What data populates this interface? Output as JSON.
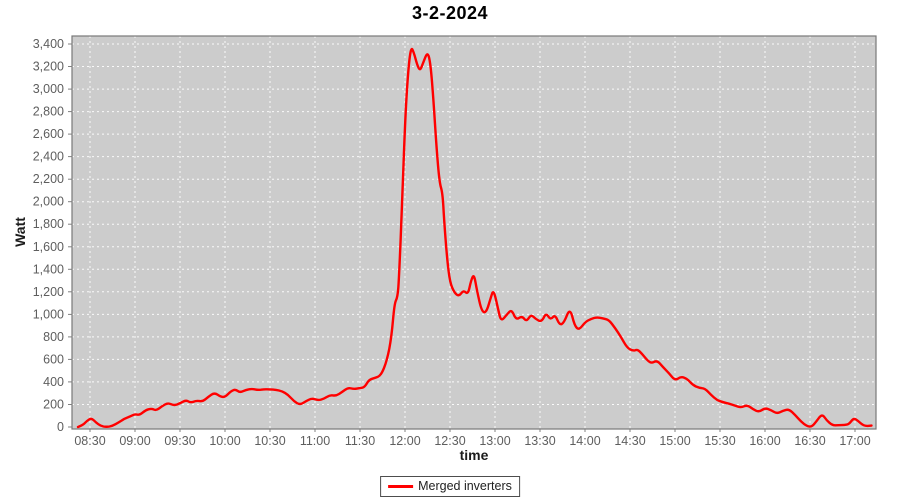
{
  "header": {
    "title": "3-2-2024"
  },
  "legend": {
    "label": "Merged inverters",
    "color": "#ff0000"
  },
  "colors": {
    "plot_background": "#cccccc",
    "plot_border": "#787878",
    "gridline": "#ffffff",
    "tick_label": "#5e5e5e",
    "tick_mark": "#808080",
    "series": "#ff0000"
  },
  "chart_data": {
    "type": "line",
    "title": "3-2-2024",
    "xlabel": "time",
    "ylabel": "Watt",
    "legend_position": "bottom-center",
    "grid": "white-dashed-on-gray",
    "x_ticks": [
      "08:30",
      "09:00",
      "09:30",
      "10:00",
      "10:30",
      "11:00",
      "11:30",
      "12:00",
      "12:30",
      "13:00",
      "13:30",
      "14:00",
      "14:30",
      "15:00",
      "15:30",
      "16:00",
      "16:30",
      "17:00"
    ],
    "y_ticks": [
      0,
      200,
      400,
      600,
      800,
      1000,
      1200,
      1400,
      1600,
      1800,
      2000,
      2200,
      2400,
      2600,
      2800,
      3000,
      3200,
      3400
    ],
    "x_range": [
      "08:18",
      "17:14"
    ],
    "ylim": [
      0,
      3470
    ],
    "series": [
      {
        "name": "Merged inverters",
        "color": "#ff0000",
        "points": [
          [
            "08:22",
            0
          ],
          [
            "08:25",
            15
          ],
          [
            "08:28",
            55
          ],
          [
            "08:31",
            80
          ],
          [
            "08:34",
            40
          ],
          [
            "08:37",
            10
          ],
          [
            "08:41",
            0
          ],
          [
            "08:45",
            10
          ],
          [
            "08:49",
            40
          ],
          [
            "08:53",
            75
          ],
          [
            "08:57",
            95
          ],
          [
            "09:00",
            115
          ],
          [
            "09:03",
            105
          ],
          [
            "09:07",
            150
          ],
          [
            "09:11",
            165
          ],
          [
            "09:14",
            145
          ],
          [
            "09:18",
            185
          ],
          [
            "09:22",
            215
          ],
          [
            "09:26",
            190
          ],
          [
            "09:30",
            210
          ],
          [
            "09:34",
            240
          ],
          [
            "09:37",
            215
          ],
          [
            "09:41",
            235
          ],
          [
            "09:45",
            225
          ],
          [
            "09:49",
            270
          ],
          [
            "09:53",
            305
          ],
          [
            "09:57",
            270
          ],
          [
            "10:00",
            265
          ],
          [
            "10:04",
            320
          ],
          [
            "10:07",
            335
          ],
          [
            "10:10",
            305
          ],
          [
            "10:14",
            330
          ],
          [
            "10:18",
            340
          ],
          [
            "10:22",
            328
          ],
          [
            "10:26",
            336
          ],
          [
            "10:30",
            334
          ],
          [
            "10:34",
            330
          ],
          [
            "10:38",
            318
          ],
          [
            "10:42",
            288
          ],
          [
            "10:46",
            228
          ],
          [
            "10:50",
            196
          ],
          [
            "10:54",
            230
          ],
          [
            "10:58",
            256
          ],
          [
            "11:02",
            236
          ],
          [
            "11:06",
            250
          ],
          [
            "11:10",
            285
          ],
          [
            "11:14",
            276
          ],
          [
            "11:18",
            310
          ],
          [
            "11:22",
            350
          ],
          [
            "11:26",
            336
          ],
          [
            "11:30",
            346
          ],
          [
            "11:33",
            352
          ],
          [
            "11:36",
            420
          ],
          [
            "11:40",
            436
          ],
          [
            "11:44",
            458
          ],
          [
            "11:48",
            590
          ],
          [
            "11:51",
            800
          ],
          [
            "11:53",
            1100
          ],
          [
            "11:55",
            1150
          ],
          [
            "11:56",
            1320
          ],
          [
            "11:58",
            1950
          ],
          [
            "12:00",
            2700
          ],
          [
            "12:02",
            3150
          ],
          [
            "12:04",
            3380
          ],
          [
            "12:06",
            3320
          ],
          [
            "12:08",
            3220
          ],
          [
            "12:10",
            3160
          ],
          [
            "12:12",
            3230
          ],
          [
            "12:15",
            3335
          ],
          [
            "12:17",
            3230
          ],
          [
            "12:19",
            2900
          ],
          [
            "12:21",
            2480
          ],
          [
            "12:23",
            2170
          ],
          [
            "12:25",
            2080
          ],
          [
            "12:26",
            1850
          ],
          [
            "12:28",
            1500
          ],
          [
            "12:30",
            1280
          ],
          [
            "12:33",
            1190
          ],
          [
            "12:36",
            1160
          ],
          [
            "12:39",
            1215
          ],
          [
            "12:42",
            1175
          ],
          [
            "12:44",
            1300
          ],
          [
            "12:46",
            1360
          ],
          [
            "12:48",
            1210
          ],
          [
            "12:51",
            1030
          ],
          [
            "12:54",
            1010
          ],
          [
            "12:57",
            1140
          ],
          [
            "12:59",
            1225
          ],
          [
            "13:02",
            1050
          ],
          [
            "13:04",
            935
          ],
          [
            "13:08",
            1000
          ],
          [
            "13:11",
            1045
          ],
          [
            "13:14",
            950
          ],
          [
            "13:18",
            985
          ],
          [
            "13:21",
            935
          ],
          [
            "13:24",
            1000
          ],
          [
            "13:27",
            960
          ],
          [
            "13:31",
            930
          ],
          [
            "13:34",
            1015
          ],
          [
            "13:37",
            950
          ],
          [
            "13:40",
            1000
          ],
          [
            "13:43",
            905
          ],
          [
            "13:46",
            925
          ],
          [
            "13:50",
            1060
          ],
          [
            "13:53",
            900
          ],
          [
            "13:56",
            860
          ],
          [
            "14:00",
            930
          ],
          [
            "14:04",
            960
          ],
          [
            "14:08",
            975
          ],
          [
            "14:12",
            965
          ],
          [
            "14:16",
            950
          ],
          [
            "14:20",
            880
          ],
          [
            "14:24",
            800
          ],
          [
            "14:28",
            705
          ],
          [
            "14:32",
            675
          ],
          [
            "14:35",
            690
          ],
          [
            "14:38",
            650
          ],
          [
            "14:41",
            600
          ],
          [
            "14:44",
            565
          ],
          [
            "14:48",
            592
          ],
          [
            "14:52",
            532
          ],
          [
            "14:56",
            478
          ],
          [
            "15:00",
            412
          ],
          [
            "15:04",
            448
          ],
          [
            "15:08",
            430
          ],
          [
            "15:12",
            372
          ],
          [
            "15:16",
            348
          ],
          [
            "15:20",
            342
          ],
          [
            "15:24",
            285
          ],
          [
            "15:28",
            238
          ],
          [
            "15:32",
            220
          ],
          [
            "15:36",
            208
          ],
          [
            "15:40",
            190
          ],
          [
            "15:44",
            172
          ],
          [
            "15:48",
            196
          ],
          [
            "15:52",
            158
          ],
          [
            "15:56",
            132
          ],
          [
            "16:00",
            170
          ],
          [
            "16:04",
            150
          ],
          [
            "16:08",
            118
          ],
          [
            "16:12",
            146
          ],
          [
            "16:16",
            158
          ],
          [
            "16:20",
            108
          ],
          [
            "16:24",
            48
          ],
          [
            "16:28",
            8
          ],
          [
            "16:31",
            2
          ],
          [
            "16:34",
            45
          ],
          [
            "16:38",
            118
          ],
          [
            "16:41",
            60
          ],
          [
            "16:45",
            14
          ],
          [
            "16:49",
            16
          ],
          [
            "16:53",
            18
          ],
          [
            "16:56",
            25
          ],
          [
            "16:59",
            80
          ],
          [
            "17:02",
            55
          ],
          [
            "17:06",
            8
          ],
          [
            "17:11",
            12
          ]
        ]
      }
    ]
  }
}
